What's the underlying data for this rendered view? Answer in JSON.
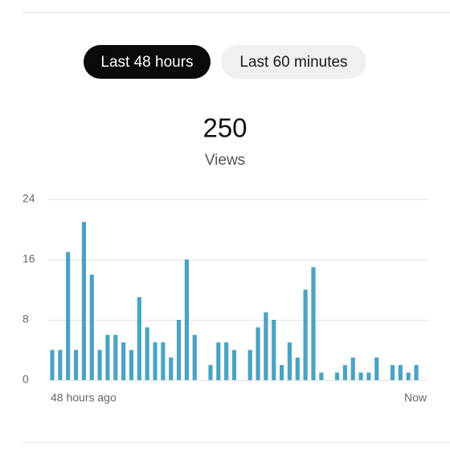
{
  "tabs": [
    {
      "label": "Last 48 hours",
      "selected": true
    },
    {
      "label": "Last 60 minutes",
      "selected": false
    }
  ],
  "stat": {
    "value": 250,
    "label": "Views"
  },
  "chart_data": {
    "type": "bar",
    "color": "#4aa3c4",
    "grid": true,
    "categories": [
      "48 hours ago",
      null,
      null,
      null,
      null,
      null,
      null,
      null,
      null,
      null,
      null,
      null,
      null,
      null,
      null,
      null,
      null,
      null,
      null,
      null,
      null,
      null,
      null,
      null,
      null,
      null,
      null,
      null,
      null,
      null,
      null,
      null,
      null,
      null,
      null,
      null,
      null,
      null,
      null,
      null,
      null,
      null,
      null,
      null,
      null,
      null,
      "Now"
    ],
    "values": [
      4,
      4,
      17,
      4,
      21,
      14,
      4,
      6,
      6,
      5,
      4,
      11,
      7,
      5,
      5,
      3,
      8,
      16,
      6,
      0,
      2,
      5,
      5,
      4,
      0,
      4,
      7,
      9,
      8,
      2,
      5,
      3,
      12,
      15,
      1,
      0,
      1,
      2,
      3,
      1,
      1,
      3,
      0,
      2,
      2,
      1,
      2
    ],
    "ylim": [
      0,
      24
    ],
    "yticks": [
      0,
      8,
      16,
      24
    ]
  }
}
